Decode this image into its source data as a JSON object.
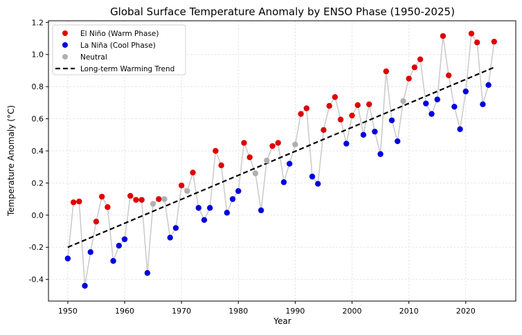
{
  "chart_data": {
    "type": "scatter",
    "title": "Global Surface Temperature Anomaly by ENSO Phase (1950-2025)",
    "xlabel": "Year",
    "ylabel": "Temperature Anomaly (°C)",
    "xlim": [
      1946.6,
      2028.8
    ],
    "ylim": [
      -0.535,
      1.21
    ],
    "xticks": [
      1950,
      1960,
      1970,
      1980,
      1990,
      2000,
      2010,
      2020
    ],
    "yticks": [
      -0.4,
      -0.2,
      0.0,
      0.2,
      0.4,
      0.6,
      0.8,
      1.0,
      1.2
    ],
    "ytick_labels": [
      "-0.4",
      "-0.2",
      "0.0",
      "0.2",
      "0.4",
      "0.6",
      "0.8",
      "1.0",
      "1.2"
    ],
    "grid": true,
    "legend_position": "top-left",
    "phase_colors": {
      "E": "#e00000",
      "L": "#0000e0",
      "N": "#b0b0b0"
    },
    "connecting_line_color": "#cccccc",
    "legend": [
      {
        "label": "El Niño (Warm Phase)",
        "kind": "E"
      },
      {
        "label": "La Niña (Cool Phase)",
        "kind": "L"
      },
      {
        "label": "Neutral",
        "kind": "N"
      },
      {
        "label": "Long-term Warming Trend",
        "kind": "trend"
      }
    ],
    "years": [
      1950,
      1951,
      1952,
      1953,
      1954,
      1955,
      1956,
      1957,
      1958,
      1959,
      1960,
      1961,
      1962,
      1963,
      1964,
      1965,
      1966,
      1967,
      1968,
      1969,
      1970,
      1971,
      1972,
      1973,
      1974,
      1975,
      1976,
      1977,
      1978,
      1979,
      1980,
      1981,
      1982,
      1983,
      1984,
      1985,
      1986,
      1987,
      1988,
      1989,
      1990,
      1991,
      1992,
      1993,
      1994,
      1995,
      1996,
      1997,
      1998,
      1999,
      2000,
      2001,
      2002,
      2003,
      2004,
      2005,
      2006,
      2007,
      2008,
      2009,
      2010,
      2011,
      2012,
      2013,
      2014,
      2015,
      2016,
      2017,
      2018,
      2019,
      2020,
      2021,
      2022,
      2023,
      2024,
      2025
    ],
    "anomaly": [
      -0.27,
      0.08,
      0.085,
      -0.44,
      -0.23,
      -0.04,
      0.115,
      0.05,
      -0.285,
      -0.19,
      -0.15,
      0.12,
      0.095,
      0.095,
      -0.36,
      0.07,
      0.1,
      0.1,
      -0.14,
      -0.08,
      0.185,
      0.15,
      0.265,
      0.045,
      -0.03,
      0.045,
      0.4,
      0.31,
      0.015,
      0.1,
      0.15,
      0.45,
      0.36,
      0.26,
      0.03,
      0.34,
      0.43,
      0.45,
      0.205,
      0.32,
      0.44,
      0.63,
      0.665,
      0.24,
      0.195,
      0.53,
      0.68,
      0.735,
      0.595,
      0.445,
      0.62,
      0.685,
      0.5,
      0.69,
      0.52,
      0.38,
      0.895,
      0.59,
      0.46,
      0.71,
      0.85,
      0.92,
      0.97,
      0.695,
      0.63,
      0.72,
      1.115,
      0.87,
      0.675,
      0.535,
      0.77,
      1.13,
      1.075,
      0.69,
      0.81,
      1.08
    ],
    "phase": [
      "L",
      "E",
      "E",
      "L",
      "L",
      "E",
      "E",
      "E",
      "L",
      "L",
      "L",
      "E",
      "E",
      "E",
      "L",
      "N",
      "E",
      "N",
      "L",
      "L",
      "E",
      "N",
      "E",
      "L",
      "L",
      "L",
      "E",
      "E",
      "L",
      "L",
      "L",
      "E",
      "E",
      "N",
      "L",
      "N",
      "E",
      "E",
      "L",
      "L",
      "N",
      "E",
      "E",
      "L",
      "L",
      "E",
      "E",
      "E",
      "E",
      "L",
      "E",
      "E",
      "L",
      "E",
      "L",
      "L",
      "E",
      "L",
      "L",
      "N",
      "E",
      "E",
      "E",
      "L",
      "L",
      "L",
      "E",
      "E",
      "L",
      "L",
      "L",
      "E",
      "E",
      "L",
      "L",
      "E"
    ],
    "trend": {
      "x": [
        1950,
        2025
      ],
      "y": [
        -0.2,
        0.92
      ]
    }
  }
}
